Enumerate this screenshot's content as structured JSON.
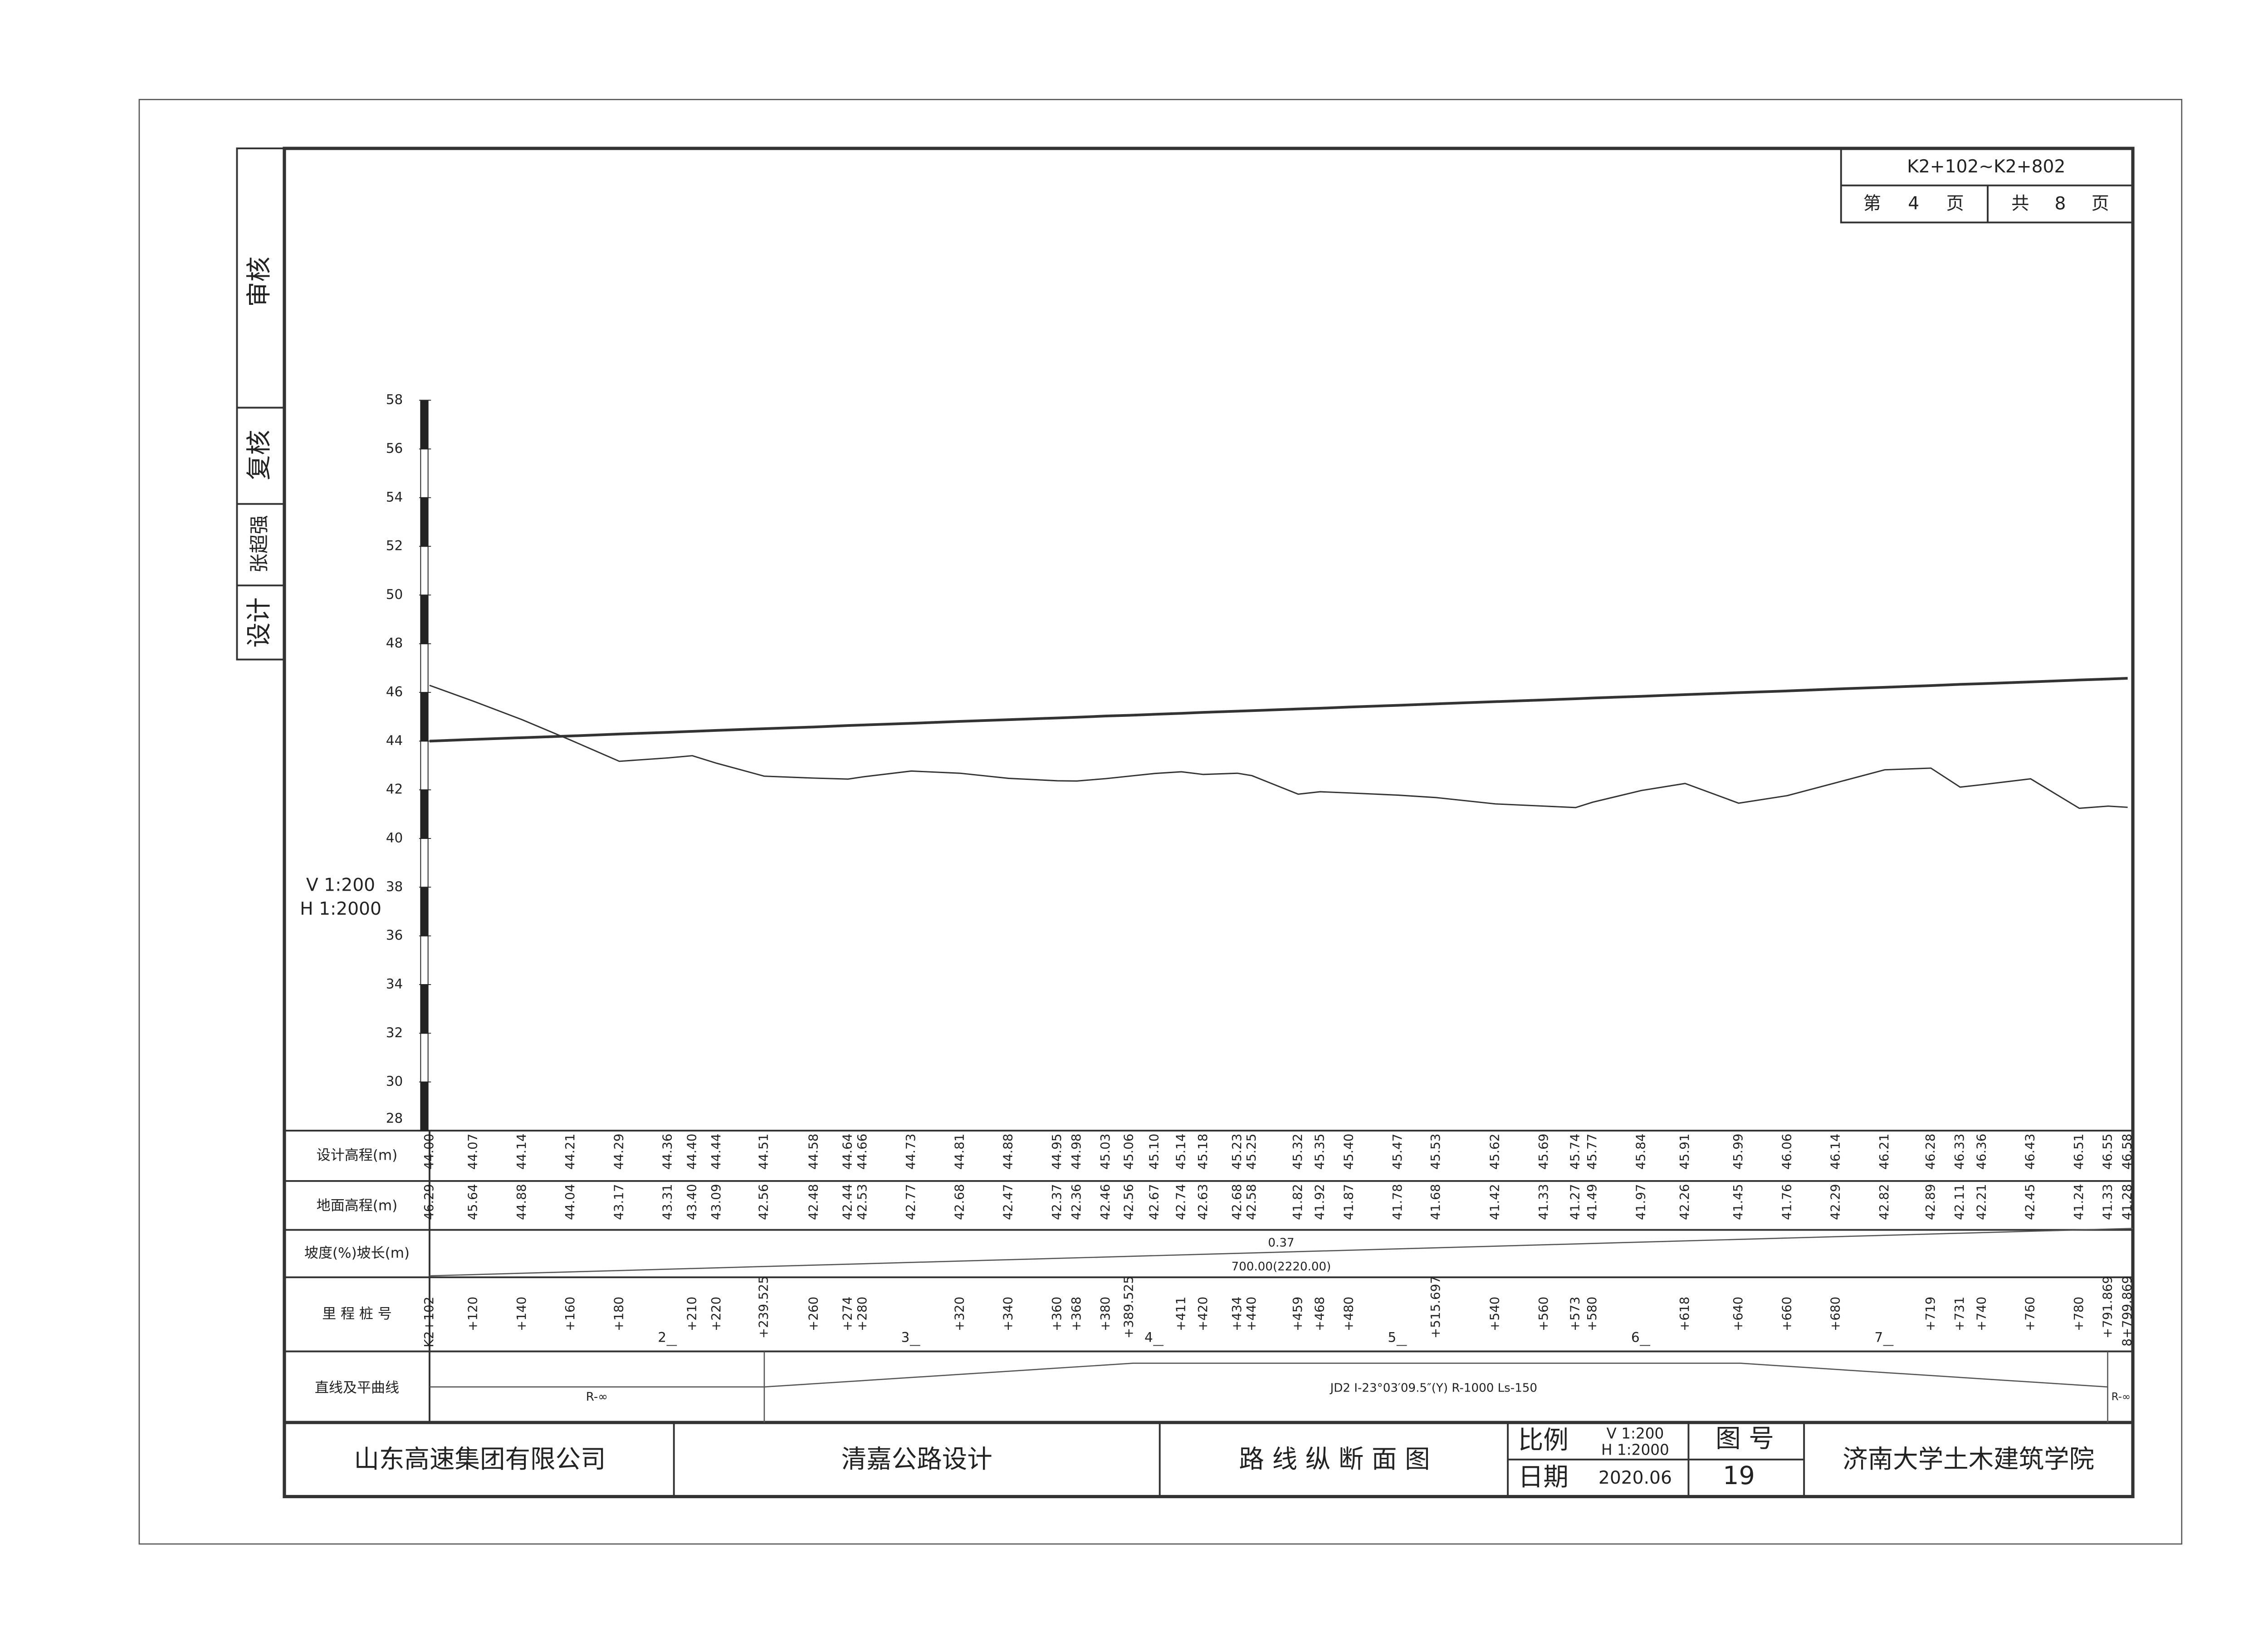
{
  "side": {
    "review": "审核",
    "check": "复核",
    "designer": "张超强",
    "design": "设计"
  },
  "sheet": {
    "range": "K2+102~K2+802",
    "page": [
      "第",
      "4",
      "页"
    ],
    "total": [
      "共",
      "8",
      "页"
    ]
  },
  "profile": {
    "scale": [
      "V 1:200",
      "H 1:2000"
    ],
    "ylim": [
      28,
      58
    ],
    "yticks": [
      28,
      30,
      32,
      34,
      36,
      38,
      40,
      42,
      44,
      46,
      48,
      50,
      52,
      54,
      56,
      58
    ],
    "xlim": [
      102,
      802
    ]
  },
  "table": {
    "row_labels": [
      "设计高程(m)",
      "地面高程(m)",
      "坡度(%)坡长(m)",
      "里 程 桩 号",
      "直线及平曲线"
    ],
    "columns": [
      {
        "station": 102,
        "label": "K2+102",
        "design": "44.00",
        "ground": "46.29"
      },
      {
        "station": 120,
        "label": "+120",
        "design": "44.07",
        "ground": "45.64"
      },
      {
        "station": 140,
        "label": "+140",
        "design": "44.14",
        "ground": "44.88"
      },
      {
        "station": 160,
        "label": "+160",
        "design": "44.21",
        "ground": "44.04"
      },
      {
        "station": 180,
        "label": "+180",
        "design": "44.29",
        "ground": "43.17"
      },
      {
        "station": 200,
        "label": "2",
        "design": "44.36",
        "ground": "43.31"
      },
      {
        "station": 210,
        "label": "+210",
        "design": "44.40",
        "ground": "43.40"
      },
      {
        "station": 220,
        "label": "+220",
        "design": "44.44",
        "ground": "43.09"
      },
      {
        "station": 239.525,
        "label": "+239.525",
        "design": "44.51",
        "ground": "42.56"
      },
      {
        "station": 260,
        "label": "+260",
        "design": "44.58",
        "ground": "42.48"
      },
      {
        "station": 274,
        "label": "+274",
        "design": "44.64",
        "ground": "42.44"
      },
      {
        "station": 280,
        "label": "+280",
        "design": "44.66",
        "ground": "42.53"
      },
      {
        "station": 300,
        "label": "3",
        "design": "44.73",
        "ground": "42.77"
      },
      {
        "station": 320,
        "label": "+320",
        "design": "44.81",
        "ground": "42.68"
      },
      {
        "station": 340,
        "label": "+340",
        "design": "44.88",
        "ground": "42.47"
      },
      {
        "station": 360,
        "label": "+360",
        "design": "44.95",
        "ground": "42.37"
      },
      {
        "station": 368,
        "label": "+368",
        "design": "44.98",
        "ground": "42.36"
      },
      {
        "station": 380,
        "label": "+380",
        "design": "45.03",
        "ground": "42.46"
      },
      {
        "station": 389.525,
        "label": "+389.525",
        "design": "45.06",
        "ground": "42.56"
      },
      {
        "station": 400,
        "label": "4",
        "design": "45.10",
        "ground": "42.67"
      },
      {
        "station": 411,
        "label": "+411",
        "design": "45.14",
        "ground": "42.74"
      },
      {
        "station": 420,
        "label": "+420",
        "design": "45.18",
        "ground": "42.63"
      },
      {
        "station": 434,
        "label": "+434",
        "design": "45.23",
        "ground": "42.68"
      },
      {
        "station": 440,
        "label": "+440",
        "design": "45.25",
        "ground": "42.58"
      },
      {
        "station": 459,
        "label": "+459",
        "design": "45.32",
        "ground": "41.82"
      },
      {
        "station": 468,
        "label": "+468",
        "design": "45.35",
        "ground": "41.92"
      },
      {
        "station": 480,
        "label": "+480",
        "design": "45.40",
        "ground": "41.87"
      },
      {
        "station": 500,
        "label": "5",
        "design": "45.47",
        "ground": "41.78"
      },
      {
        "station": 515.697,
        "label": "+515.697",
        "design": "45.53",
        "ground": "41.68"
      },
      {
        "station": 540,
        "label": "+540",
        "design": "45.62",
        "ground": "41.42"
      },
      {
        "station": 560,
        "label": "+560",
        "design": "45.69",
        "ground": "41.33"
      },
      {
        "station": 573,
        "label": "+573",
        "design": "45.74",
        "ground": "41.27"
      },
      {
        "station": 580,
        "label": "+580",
        "design": "45.77",
        "ground": "41.49"
      },
      {
        "station": 600,
        "label": "6",
        "design": "45.84",
        "ground": "41.97"
      },
      {
        "station": 618,
        "label": "+618",
        "design": "45.91",
        "ground": "42.26"
      },
      {
        "station": 640,
        "label": "+640",
        "design": "45.99",
        "ground": "41.45"
      },
      {
        "station": 660,
        "label": "+660",
        "design": "46.06",
        "ground": "41.76"
      },
      {
        "station": 680,
        "label": "+680",
        "design": "46.14",
        "ground": "42.29"
      },
      {
        "station": 700,
        "label": "7",
        "design": "46.21",
        "ground": "42.82"
      },
      {
        "station": 719,
        "label": "+719",
        "design": "46.28",
        "ground": "42.89"
      },
      {
        "station": 731,
        "label": "+731",
        "design": "46.33",
        "ground": "42.11"
      },
      {
        "station": 740,
        "label": "+740",
        "design": "46.36",
        "ground": "42.21"
      },
      {
        "station": 760,
        "label": "+760",
        "design": "46.43",
        "ground": "42.45"
      },
      {
        "station": 780,
        "label": "+780",
        "design": "46.51",
        "ground": "41.24"
      },
      {
        "station": 791.869,
        "label": "+791.869",
        "design": "46.55",
        "ground": "41.33"
      },
      {
        "station": 799.869,
        "label": "8+799.869",
        "design": "46.58",
        "ground": "41.28"
      }
    ],
    "grade": "0.37",
    "grade_length": "700.00(2220.00)",
    "curve_left": "R-∞",
    "curve": "JD2 I-23°03′09.5″(Y) R-1000 Ls-150",
    "curve_right": "R-∞"
  },
  "title_block": {
    "owner": "山东高速集团有限公司",
    "project": "清嘉公路设计",
    "drawing": "路 线 纵 断 面 图",
    "scale_label": "比例",
    "scale": [
      "V 1:200",
      "H 1:2000"
    ],
    "date_label": "日期",
    "date": "2020.06",
    "number_label": "图 号",
    "number": "19",
    "institute": "济南大学土木建筑学院"
  }
}
